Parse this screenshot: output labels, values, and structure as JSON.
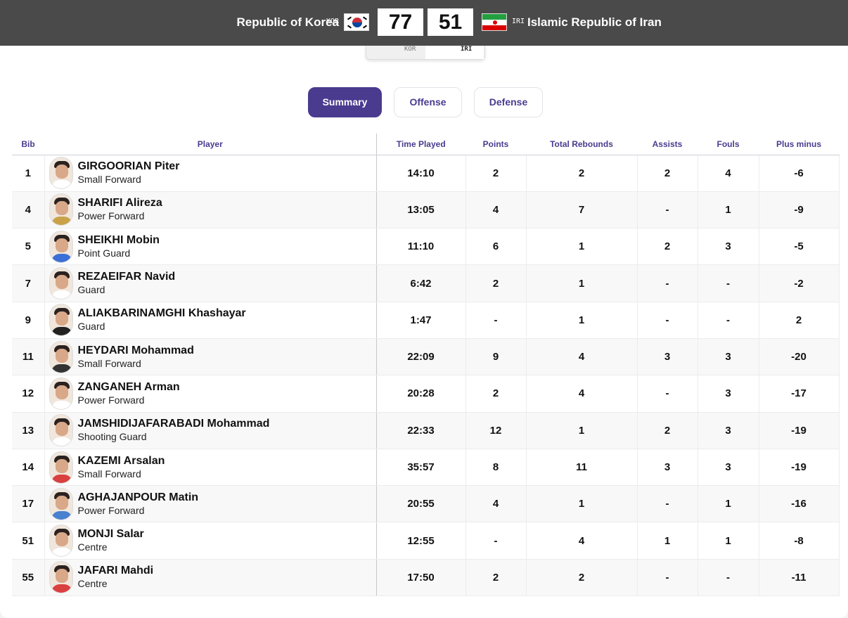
{
  "header": {
    "home_name": "Republic of Korea",
    "home_code": "KOR",
    "home_score": "77",
    "away_score": "51",
    "away_code": "IRI",
    "away_name": "Islamic Republic of Iran"
  },
  "team_switch": {
    "kor": "KOR",
    "iri": "IRI"
  },
  "tabs": [
    {
      "label": "Summary",
      "active": true
    },
    {
      "label": "Offense",
      "active": false
    },
    {
      "label": "Defense",
      "active": false
    }
  ],
  "columns": [
    "Bib",
    "Player",
    "Time Played",
    "Points",
    "Total Rebounds",
    "Assists",
    "Fouls",
    "Plus minus"
  ],
  "players": [
    {
      "bib": "1",
      "name": "GIRGOORIAN Piter",
      "pos": "Small Forward",
      "time": "14:10",
      "pts": "2",
      "reb": "2",
      "ast": "2",
      "fouls": "4",
      "pm": "-6",
      "shirt": "#ffffff"
    },
    {
      "bib": "4",
      "name": "SHARIFI Alireza",
      "pos": "Power Forward",
      "time": "13:05",
      "pts": "4",
      "reb": "7",
      "ast": "-",
      "fouls": "1",
      "pm": "-9",
      "shirt": "#c9a24a"
    },
    {
      "bib": "5",
      "name": "SHEIKHI Mobin",
      "pos": "Point Guard",
      "time": "11:10",
      "pts": "6",
      "reb": "1",
      "ast": "2",
      "fouls": "3",
      "pm": "-5",
      "shirt": "#3b6fd6"
    },
    {
      "bib": "7",
      "name": "REZAEIFAR Navid",
      "pos": "Guard",
      "time": "6:42",
      "pts": "2",
      "reb": "1",
      "ast": "-",
      "fouls": "-",
      "pm": "-2",
      "shirt": "#ffffff"
    },
    {
      "bib": "9",
      "name": "ALIAKBARINAMGHI Khashayar",
      "pos": "Guard",
      "time": "1:47",
      "pts": "-",
      "reb": "1",
      "ast": "-",
      "fouls": "-",
      "pm": "2",
      "shirt": "#222222"
    },
    {
      "bib": "11",
      "name": "HEYDARI Mohammad",
      "pos": "Small Forward",
      "time": "22:09",
      "pts": "9",
      "reb": "4",
      "ast": "3",
      "fouls": "3",
      "pm": "-20",
      "shirt": "#333333"
    },
    {
      "bib": "12",
      "name": "ZANGANEH Arman",
      "pos": "Power Forward",
      "time": "20:28",
      "pts": "2",
      "reb": "4",
      "ast": "-",
      "fouls": "3",
      "pm": "-17",
      "shirt": "#ffffff"
    },
    {
      "bib": "13",
      "name": "JAMSHIDIJAFARABADI Mohammad",
      "pos": "Shooting Guard",
      "time": "22:33",
      "pts": "12",
      "reb": "1",
      "ast": "2",
      "fouls": "3",
      "pm": "-19",
      "shirt": "#ffffff"
    },
    {
      "bib": "14",
      "name": "KAZEMI Arsalan",
      "pos": "Small Forward",
      "time": "35:57",
      "pts": "8",
      "reb": "11",
      "ast": "3",
      "fouls": "3",
      "pm": "-19",
      "shirt": "#d94040"
    },
    {
      "bib": "17",
      "name": "AGHAJANPOUR Matin",
      "pos": "Power Forward",
      "time": "20:55",
      "pts": "4",
      "reb": "1",
      "ast": "-",
      "fouls": "1",
      "pm": "-16",
      "shirt": "#4a80d0"
    },
    {
      "bib": "51",
      "name": "MONJI Salar",
      "pos": "Centre",
      "time": "12:55",
      "pts": "-",
      "reb": "4",
      "ast": "1",
      "fouls": "1",
      "pm": "-8",
      "shirt": "#ffffff"
    },
    {
      "bib": "55",
      "name": "JAFARI Mahdi",
      "pos": "Centre",
      "time": "17:50",
      "pts": "2",
      "reb": "2",
      "ast": "-",
      "fouls": "-",
      "pm": "-11",
      "shirt": "#d94040"
    }
  ]
}
